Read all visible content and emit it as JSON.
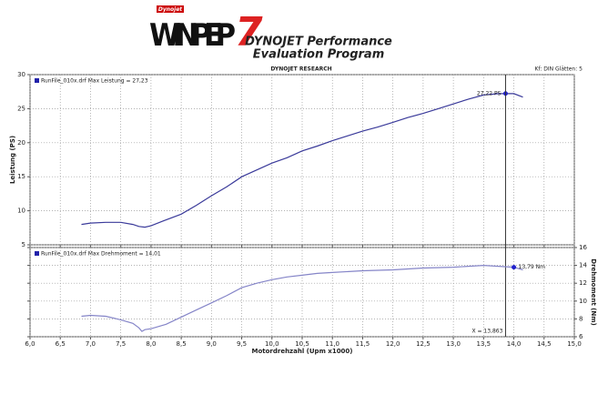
{
  "header": {
    "logo_badge": "Dynojet",
    "logo": "WINPEP",
    "logo_number": "7",
    "title_line1": "DYNOJET Performance",
    "title_line2": "Evaluation Program",
    "subtitle": "DYNOJET RESEARCH",
    "settings": "Kf: DIN  Glätten: 5"
  },
  "chart_data": [
    {
      "type": "line",
      "ylabel": "Leistung (PS)",
      "legend_text": "RunFile_010x.drf Max Leistung = 27,23",
      "x": [
        6.85,
        7.0,
        7.25,
        7.5,
        7.7,
        7.8,
        7.9,
        8.0,
        8.2,
        8.5,
        8.75,
        9.0,
        9.25,
        9.5,
        9.75,
        10.0,
        10.25,
        10.5,
        10.75,
        11.0,
        11.25,
        11.5,
        11.75,
        12.0,
        12.25,
        12.5,
        12.75,
        13.0,
        13.25,
        13.5,
        13.75,
        14.0,
        14.15
      ],
      "series": [
        {
          "name": "Leistung",
          "color": "#3a3a9a",
          "values": [
            8.0,
            8.2,
            8.3,
            8.3,
            8.0,
            7.7,
            7.6,
            7.8,
            8.5,
            9.5,
            10.8,
            12.2,
            13.5,
            15.0,
            16.0,
            17.0,
            17.8,
            18.8,
            19.5,
            20.3,
            21.0,
            21.7,
            22.3,
            23.0,
            23.7,
            24.3,
            25.0,
            25.7,
            26.4,
            27.0,
            27.2,
            27.2,
            26.7
          ]
        }
      ],
      "xlim": [
        6.0,
        15.0
      ],
      "xticks": [
        6.0,
        6.5,
        7.0,
        7.5,
        8.0,
        8.5,
        9.0,
        9.5,
        10.0,
        10.5,
        11.0,
        11.5,
        12.0,
        12.5,
        13.0,
        13.5,
        14.0,
        14.5,
        15.0
      ],
      "ylim": [
        5,
        30
      ],
      "yticks": [
        5,
        10,
        15,
        20,
        25,
        30
      ],
      "grid": true,
      "annotation": {
        "x": 13.863,
        "y": 27.22,
        "label": "27,22 PS"
      }
    },
    {
      "type": "line",
      "y2label": "Drehmoment (Nm)",
      "xlabel": "Motordrehzahl (Upm x1000)",
      "legend_text": "RunFile_010x.drf Max Drehmoment = 14,01",
      "x": [
        6.85,
        7.0,
        7.25,
        7.5,
        7.7,
        7.8,
        7.85,
        7.9,
        8.0,
        8.25,
        8.5,
        8.75,
        9.0,
        9.25,
        9.5,
        9.75,
        10.0,
        10.25,
        10.5,
        10.75,
        11.0,
        11.5,
        12.0,
        12.5,
        13.0,
        13.5,
        13.75,
        14.0,
        14.15
      ],
      "series": [
        {
          "name": "Drehmoment",
          "color": "#8585c8",
          "axis": "y2",
          "values": [
            8.3,
            8.4,
            8.3,
            7.9,
            7.5,
            7.0,
            6.6,
            6.8,
            6.9,
            7.4,
            8.2,
            9.0,
            9.8,
            10.6,
            11.5,
            12.0,
            12.4,
            12.7,
            12.9,
            13.1,
            13.2,
            13.4,
            13.5,
            13.7,
            13.8,
            14.0,
            13.9,
            13.8,
            13.5
          ]
        }
      ],
      "xlim": [
        6.0,
        15.0
      ],
      "xticks": [
        {
          "value": 6.0,
          "label": "6,0"
        },
        {
          "value": 6.5,
          "label": "6,5"
        },
        {
          "value": 7.0,
          "label": "7,0"
        },
        {
          "value": 7.5,
          "label": "7,5"
        },
        {
          "value": 8.0,
          "label": "8,0"
        },
        {
          "value": 8.5,
          "label": "8,5"
        },
        {
          "value": 9.0,
          "label": "9,0"
        },
        {
          "value": 9.5,
          "label": "9,5"
        },
        {
          "value": 10.0,
          "label": "10,0"
        },
        {
          "value": 10.5,
          "label": "10,5"
        },
        {
          "value": 11.0,
          "label": "11,0"
        },
        {
          "value": 11.5,
          "label": "11,5"
        },
        {
          "value": 12.0,
          "label": "12,0"
        },
        {
          "value": 12.5,
          "label": "12,5"
        },
        {
          "value": 13.0,
          "label": "13,0"
        },
        {
          "value": 13.5,
          "label": "13,5"
        },
        {
          "value": 14.0,
          "label": "14,0"
        },
        {
          "value": 14.5,
          "label": "14,5"
        },
        {
          "value": 15.0,
          "label": "15,0"
        }
      ],
      "y2lim": [
        6,
        16
      ],
      "y2ticks": [
        6,
        8,
        10,
        12,
        14,
        16
      ],
      "grid": true,
      "annotation": {
        "x": 14.0,
        "y": 13.79,
        "label": "13,79 Nm"
      },
      "cursor": {
        "value": 13.863,
        "label": "X = 13,863"
      }
    }
  ]
}
